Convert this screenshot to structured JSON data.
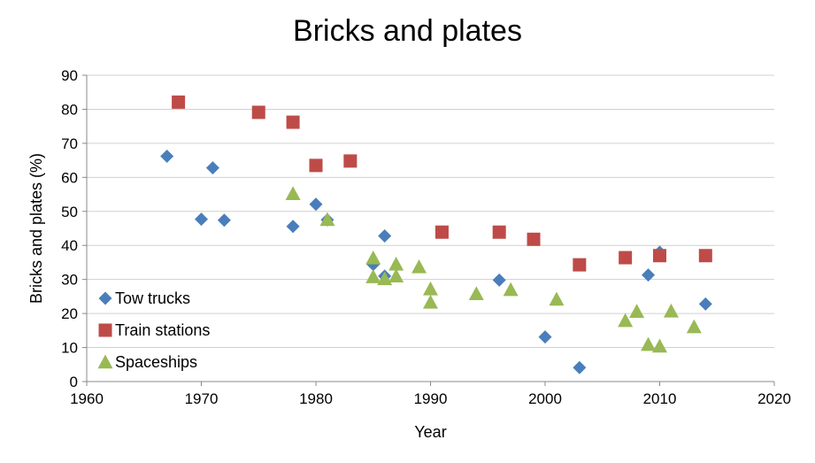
{
  "chart_data": {
    "type": "scatter",
    "title": "Bricks and plates",
    "xlabel": "Year",
    "ylabel": "Bricks and plates (%)",
    "xlim": [
      1960,
      2020
    ],
    "ylim": [
      0,
      90
    ],
    "x_ticks": [
      1960,
      1970,
      1980,
      1990,
      2000,
      2010,
      2020
    ],
    "y_ticks": [
      0,
      10,
      20,
      30,
      40,
      50,
      60,
      70,
      80,
      90
    ],
    "grid": "horizontal",
    "legend_position": "bottom-left",
    "series": [
      {
        "name": "Tow trucks",
        "marker": "diamond",
        "color": "#4a7ebb",
        "points": [
          [
            1967,
            66.2
          ],
          [
            1970,
            47.7
          ],
          [
            1971,
            62.8
          ],
          [
            1972,
            47.4
          ],
          [
            1978,
            45.6
          ],
          [
            1980,
            52.1
          ],
          [
            1981,
            47.5
          ],
          [
            1985,
            34.4
          ],
          [
            1986,
            42.8
          ],
          [
            1986,
            31.0
          ],
          [
            1996,
            29.8
          ],
          [
            2000,
            13.1
          ],
          [
            2003,
            4.1
          ],
          [
            2009,
            31.3
          ],
          [
            2010,
            38.0
          ],
          [
            2014,
            22.8
          ]
        ]
      },
      {
        "name": "Train stations",
        "marker": "square",
        "color": "#be4b48",
        "points": [
          [
            1968,
            82.1
          ],
          [
            1975,
            79.1
          ],
          [
            1978,
            76.2
          ],
          [
            1980,
            63.5
          ],
          [
            1983,
            64.8
          ],
          [
            1991,
            43.9
          ],
          [
            1996,
            43.9
          ],
          [
            1999,
            41.8
          ],
          [
            2003,
            34.3
          ],
          [
            2007,
            36.4
          ],
          [
            2010,
            37.0
          ],
          [
            2014,
            37.0
          ]
        ]
      },
      {
        "name": "Spaceships",
        "marker": "triangle",
        "color": "#98b954",
        "points": [
          [
            1978,
            55.2
          ],
          [
            1981,
            47.6
          ],
          [
            1985,
            36.3
          ],
          [
            1985,
            30.8
          ],
          [
            1986,
            30.2
          ],
          [
            1987,
            34.5
          ],
          [
            1987,
            31.0
          ],
          [
            1989,
            33.7
          ],
          [
            1990,
            27.2
          ],
          [
            1990,
            23.3
          ],
          [
            1994,
            25.8
          ],
          [
            1997,
            27.0
          ],
          [
            2001,
            24.2
          ],
          [
            2007,
            17.9
          ],
          [
            2008,
            20.6
          ],
          [
            2009,
            10.9
          ],
          [
            2010,
            10.4
          ],
          [
            2011,
            20.7
          ],
          [
            2013,
            16.1
          ]
        ]
      }
    ]
  }
}
